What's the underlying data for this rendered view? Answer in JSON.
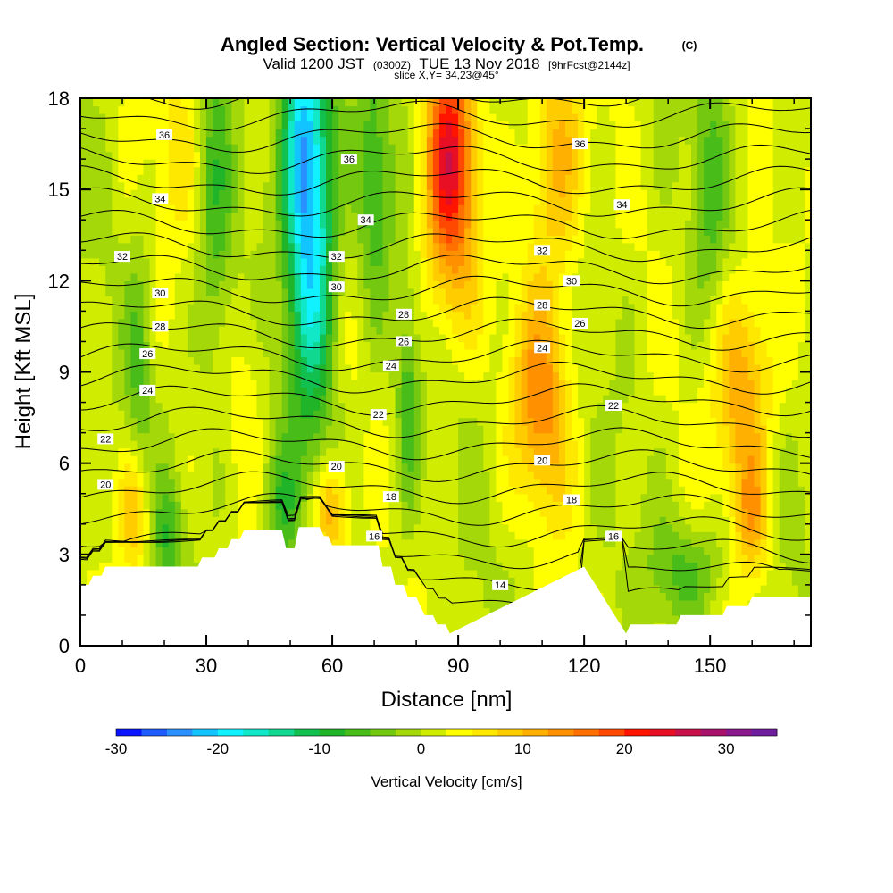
{
  "header": {
    "title": "Angled Section: Vertical Velocity & Pot.Temp.",
    "title_unit": "(C)",
    "valid_prefix": "Valid 1200 JST",
    "valid_utc": "(0300Z)",
    "valid_date": "TUE 13 Nov 2018",
    "forecast": "[9hrFcst@2144z]",
    "slice": "slice X,Y= 34,23@45°"
  },
  "chart_data": {
    "type": "heatmap",
    "xlabel": "Distance [nm]",
    "ylabel": "Height [Kft MSL]",
    "xlim": [
      0,
      174
    ],
    "ylim": [
      0,
      18
    ],
    "x_ticks": [
      0,
      30,
      60,
      90,
      120,
      150
    ],
    "y_ticks": [
      0,
      3,
      6,
      9,
      12,
      15,
      18
    ],
    "colorbar": {
      "label": "Vertical Velocity [cm/s]",
      "range": [
        -30,
        35
      ],
      "step": 2.5,
      "tick_values": [
        -30,
        -20,
        -10,
        0,
        10,
        20,
        30
      ],
      "colors": [
        "#0a14ff",
        "#1e5cff",
        "#2a90ff",
        "#12c4ff",
        "#10f2ff",
        "#10e8c8",
        "#10d890",
        "#12c050",
        "#20b428",
        "#48bc18",
        "#74c810",
        "#a4d808",
        "#d0ec00",
        "#ffff00",
        "#ffe800",
        "#ffcc00",
        "#ffb000",
        "#ff9000",
        "#ff7000",
        "#ff4800",
        "#ff1400",
        "#e80e24",
        "#c8104a",
        "#a8126a",
        "#88188c",
        "#6e1e9c"
      ]
    },
    "terrain_kft": [
      [
        0,
        2.0
      ],
      [
        2,
        2.0
      ],
      [
        3,
        2.3
      ],
      [
        5,
        2.3
      ],
      [
        6,
        2.6
      ],
      [
        120,
        2.6
      ],
      [
        21,
        2.6
      ],
      [
        22,
        2.6
      ],
      [
        23,
        2.6
      ],
      [
        24,
        2.6
      ],
      [
        25,
        2.6
      ],
      [
        28,
        2.6
      ],
      [
        29,
        2.9
      ],
      [
        32,
        2.9
      ],
      [
        33,
        3.2
      ],
      [
        35,
        3.2
      ],
      [
        36,
        3.5
      ],
      [
        38,
        3.5
      ],
      [
        39,
        3.8
      ],
      [
        48,
        3.8
      ],
      [
        49,
        3.2
      ],
      [
        51,
        3.2
      ],
      [
        52,
        3.9
      ],
      [
        57,
        3.9
      ],
      [
        58,
        3.6
      ],
      [
        59,
        3.6
      ],
      [
        60,
        3.3
      ],
      [
        71,
        3.3
      ],
      [
        72,
        2.6
      ],
      [
        74,
        2.6
      ],
      [
        75,
        2.0
      ],
      [
        77,
        2.0
      ],
      [
        78,
        1.6
      ],
      [
        80,
        1.6
      ],
      [
        81,
        1.3
      ],
      [
        82,
        1.0
      ],
      [
        84,
        1.0
      ],
      [
        85,
        0.7
      ],
      [
        87,
        0.7
      ],
      [
        88,
        0.4
      ],
      [
        130,
        0.4
      ],
      [
        131,
        0.7
      ],
      [
        142,
        0.7
      ],
      [
        143,
        1.0
      ],
      [
        153,
        1.0
      ],
      [
        154,
        1.3
      ],
      [
        159,
        1.3
      ],
      [
        160,
        1.6
      ],
      [
        174,
        1.6
      ]
    ],
    "theta_contour_levels": [
      14,
      15,
      16,
      17,
      18,
      19,
      20,
      21,
      22,
      23,
      24,
      25,
      26,
      27,
      28,
      29,
      30,
      31,
      32,
      33,
      34,
      35,
      36,
      37,
      38
    ],
    "theta_contour_labels": [
      {
        "x": 20,
        "y": 16.8,
        "text": "36"
      },
      {
        "x": 64,
        "y": 16.0,
        "text": "36"
      },
      {
        "x": 119,
        "y": 16.5,
        "text": "36"
      },
      {
        "x": 19,
        "y": 14.7,
        "text": "34"
      },
      {
        "x": 68,
        "y": 14.0,
        "text": "34"
      },
      {
        "x": 129,
        "y": 14.5,
        "text": "34"
      },
      {
        "x": 10,
        "y": 12.8,
        "text": "32"
      },
      {
        "x": 61,
        "y": 12.8,
        "text": "32"
      },
      {
        "x": 110,
        "y": 13.0,
        "text": "32"
      },
      {
        "x": 19,
        "y": 11.6,
        "text": "30"
      },
      {
        "x": 61,
        "y": 11.8,
        "text": "30"
      },
      {
        "x": 117,
        "y": 12.0,
        "text": "30"
      },
      {
        "x": 19,
        "y": 10.5,
        "text": "28"
      },
      {
        "x": 77,
        "y": 10.9,
        "text": "28"
      },
      {
        "x": 110,
        "y": 11.2,
        "text": "28"
      },
      {
        "x": 16,
        "y": 9.6,
        "text": "26"
      },
      {
        "x": 77,
        "y": 10.0,
        "text": "26"
      },
      {
        "x": 119,
        "y": 10.6,
        "text": "26"
      },
      {
        "x": 16,
        "y": 8.4,
        "text": "24"
      },
      {
        "x": 74,
        "y": 9.2,
        "text": "24"
      },
      {
        "x": 110,
        "y": 9.8,
        "text": "24"
      },
      {
        "x": 6,
        "y": 6.8,
        "text": "22"
      },
      {
        "x": 71,
        "y": 7.6,
        "text": "22"
      },
      {
        "x": 127,
        "y": 7.9,
        "text": "22"
      },
      {
        "x": 6,
        "y": 5.3,
        "text": "20"
      },
      {
        "x": 61,
        "y": 5.9,
        "text": "20"
      },
      {
        "x": 110,
        "y": 6.1,
        "text": "20"
      },
      {
        "x": 74,
        "y": 4.9,
        "text": "18"
      },
      {
        "x": 117,
        "y": 4.8,
        "text": "18"
      },
      {
        "x": 70,
        "y": 3.6,
        "text": "16"
      },
      {
        "x": 127,
        "y": 3.6,
        "text": "16"
      },
      {
        "x": 100,
        "y": 2.0,
        "text": "14"
      }
    ],
    "vertical_velocity_features": [
      {
        "x": 55,
        "y": 14,
        "sx": 4,
        "sy": 4.5,
        "value": -22
      },
      {
        "x": 52,
        "y": 17,
        "sx": 3,
        "sy": 2.5,
        "value": -10
      },
      {
        "x": 88,
        "y": 16.5,
        "sx": 4,
        "sy": 2.5,
        "value": 18
      },
      {
        "x": 88,
        "y": 13,
        "sx": 5,
        "sy": 2.5,
        "value": 8
      },
      {
        "x": 113,
        "y": 16,
        "sx": 5,
        "sy": 3,
        "value": 10
      },
      {
        "x": 110,
        "y": 8,
        "sx": 5,
        "sy": 2.5,
        "value": 12
      },
      {
        "x": 158,
        "y": 8.5,
        "sx": 5,
        "sy": 2.5,
        "value": 12
      },
      {
        "x": 13,
        "y": 4.4,
        "sx": 2.5,
        "sy": 1.5,
        "value": 9
      },
      {
        "x": 60,
        "y": 4.3,
        "sx": 3,
        "sy": 1.2,
        "value": 12
      },
      {
        "x": 160,
        "y": 4.2,
        "sx": 3,
        "sy": 1.5,
        "value": 9
      },
      {
        "x": 23,
        "y": 16.5,
        "sx": 4,
        "sy": 2,
        "value": 5
      },
      {
        "x": 32,
        "y": 14,
        "sx": 3,
        "sy": 4,
        "value": -7
      },
      {
        "x": 70,
        "y": 15,
        "sx": 3,
        "sy": 3,
        "value": -8
      },
      {
        "x": 78,
        "y": 8,
        "sx": 2,
        "sy": 2.5,
        "value": -8
      },
      {
        "x": 14,
        "y": 9,
        "sx": 2,
        "sy": 3,
        "value": -5
      },
      {
        "x": 40,
        "y": 9,
        "sx": 3,
        "sy": 2.5,
        "value": 3
      },
      {
        "x": 150,
        "y": 15,
        "sx": 3,
        "sy": 3,
        "value": -6
      },
      {
        "x": 48,
        "y": 4.5,
        "sx": 3,
        "sy": 1.5,
        "value": -7
      },
      {
        "x": 21,
        "y": 3.5,
        "sx": 2.5,
        "sy": 1.2,
        "value": -7
      },
      {
        "x": 145,
        "y": 2.5,
        "sx": 6,
        "sy": 1.2,
        "value": -7
      }
    ]
  }
}
